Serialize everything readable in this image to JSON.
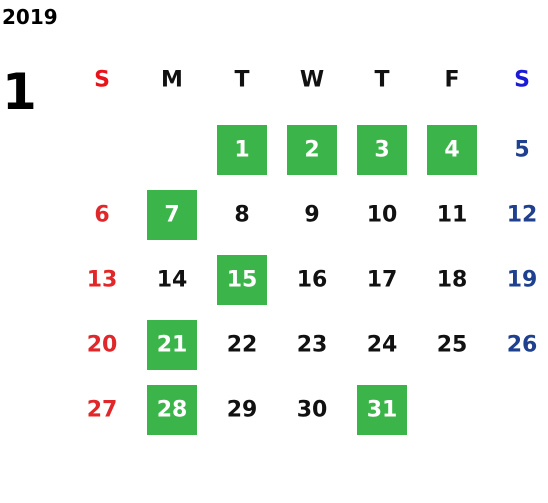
{
  "year": "2019",
  "month": "1",
  "weekdays": [
    "S",
    "M",
    "T",
    "W",
    "T",
    "F",
    "S"
  ],
  "weeks": [
    [
      null,
      null,
      {
        "day": 1,
        "marked": true
      },
      {
        "day": 2,
        "marked": true
      },
      {
        "day": 3,
        "marked": true
      },
      {
        "day": 4,
        "marked": true
      },
      {
        "day": 5,
        "marked": false
      }
    ],
    [
      {
        "day": 6,
        "marked": false
      },
      {
        "day": 7,
        "marked": true
      },
      {
        "day": 8,
        "marked": false
      },
      {
        "day": 9,
        "marked": false
      },
      {
        "day": 10,
        "marked": false
      },
      {
        "day": 11,
        "marked": false
      },
      {
        "day": 12,
        "marked": false
      }
    ],
    [
      {
        "day": 13,
        "marked": false
      },
      {
        "day": 14,
        "marked": false
      },
      {
        "day": 15,
        "marked": true
      },
      {
        "day": 16,
        "marked": false
      },
      {
        "day": 17,
        "marked": false
      },
      {
        "day": 18,
        "marked": false
      },
      {
        "day": 19,
        "marked": false
      }
    ],
    [
      {
        "day": 20,
        "marked": false
      },
      {
        "day": 21,
        "marked": true
      },
      {
        "day": 22,
        "marked": false
      },
      {
        "day": 23,
        "marked": false
      },
      {
        "day": 24,
        "marked": false
      },
      {
        "day": 25,
        "marked": false
      },
      {
        "day": 26,
        "marked": false
      }
    ],
    [
      {
        "day": 27,
        "marked": false
      },
      {
        "day": 28,
        "marked": true
      },
      {
        "day": 29,
        "marked": false
      },
      {
        "day": 30,
        "marked": false
      },
      {
        "day": 31,
        "marked": true
      },
      null,
      null
    ]
  ]
}
